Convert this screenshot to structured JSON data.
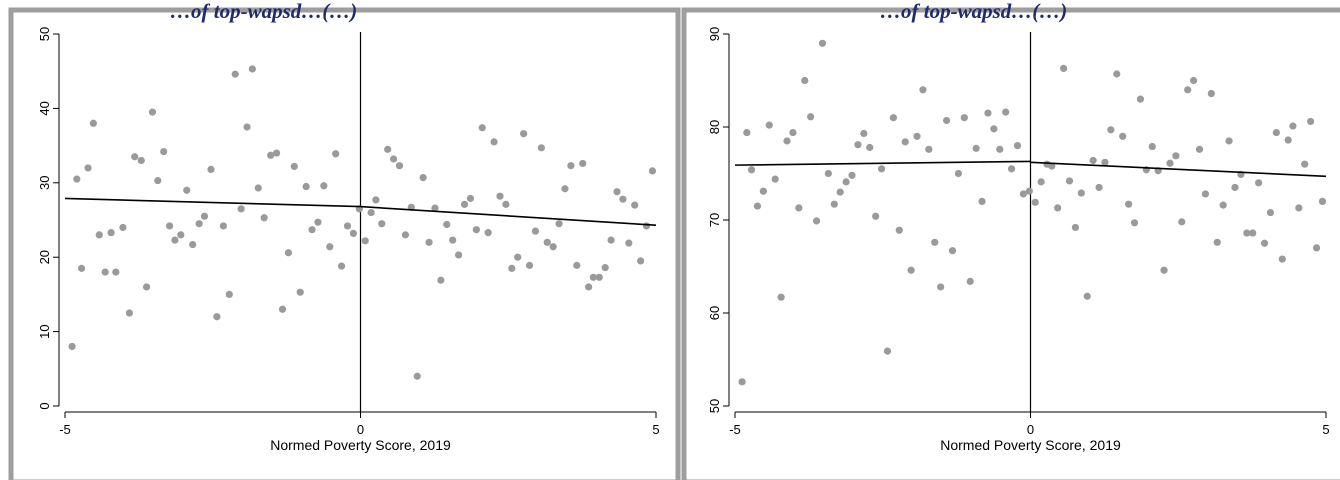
{
  "titles": [
    "…of top-wapsd…(…)",
    "…of top-wapsd…(…)"
  ],
  "chart_data": [
    {
      "type": "scatter",
      "xlabel": "Normed Poverty Score, 2019",
      "ylabel": "",
      "xlim": [
        -5,
        5
      ],
      "ylim": [
        0,
        50
      ],
      "xticks": [
        "-5",
        "0",
        "5"
      ],
      "yticks": [
        "0",
        "10",
        "20",
        "30",
        "40",
        "50"
      ],
      "cutoff": 0,
      "points": [
        [
          -4.88,
          8
        ],
        [
          -4.8,
          30.5
        ],
        [
          -4.72,
          18.5
        ],
        [
          -4.61,
          32
        ],
        [
          -4.52,
          38
        ],
        [
          -4.42,
          23
        ],
        [
          -4.32,
          18
        ],
        [
          -4.22,
          23.3
        ],
        [
          -4.14,
          18
        ],
        [
          -4.02,
          24
        ],
        [
          -3.91,
          12.5
        ],
        [
          -3.82,
          33.5
        ],
        [
          -3.71,
          33
        ],
        [
          -3.62,
          16
        ],
        [
          -3.52,
          39.5
        ],
        [
          -3.43,
          30.3
        ],
        [
          -3.33,
          34.2
        ],
        [
          -3.23,
          24.2
        ],
        [
          -3.14,
          22.3
        ],
        [
          -3.04,
          23
        ],
        [
          -2.94,
          29
        ],
        [
          -2.84,
          21.7
        ],
        [
          -2.73,
          24.5
        ],
        [
          -2.64,
          25.5
        ],
        [
          -2.53,
          31.8
        ],
        [
          -2.43,
          12
        ],
        [
          -2.32,
          24.2
        ],
        [
          -2.22,
          15
        ],
        [
          -2.12,
          44.6
        ],
        [
          -2.02,
          26.5
        ],
        [
          -1.92,
          37.5
        ],
        [
          -1.83,
          45.3
        ],
        [
          -1.73,
          29.3
        ],
        [
          -1.63,
          25.3
        ],
        [
          -1.52,
          33.7
        ],
        [
          -1.42,
          34
        ],
        [
          -1.32,
          13
        ],
        [
          -1.22,
          20.6
        ],
        [
          -1.12,
          32.2
        ],
        [
          -1.02,
          15.3
        ],
        [
          -0.92,
          29.5
        ],
        [
          -0.82,
          23.7
        ],
        [
          -0.72,
          24.7
        ],
        [
          -0.62,
          29.6
        ],
        [
          -0.52,
          21.4
        ],
        [
          -0.42,
          33.9
        ],
        [
          -0.32,
          18.8
        ],
        [
          -0.22,
          24.2
        ],
        [
          -0.12,
          23.2
        ],
        [
          -0.02,
          26.5
        ],
        [
          0.08,
          22.2
        ],
        [
          0.18,
          26
        ],
        [
          0.26,
          27.7
        ],
        [
          0.36,
          24.5
        ],
        [
          0.46,
          34.5
        ],
        [
          0.56,
          33.2
        ],
        [
          0.66,
          32.3
        ],
        [
          0.76,
          23
        ],
        [
          0.86,
          26.7
        ],
        [
          0.96,
          4
        ],
        [
          1.06,
          30.7
        ],
        [
          1.16,
          22
        ],
        [
          1.26,
          26.6
        ],
        [
          1.36,
          16.9
        ],
        [
          1.46,
          24.4
        ],
        [
          1.56,
          22.3
        ],
        [
          1.66,
          20.3
        ],
        [
          1.76,
          27.1
        ],
        [
          1.86,
          27.9
        ],
        [
          1.96,
          23.7
        ],
        [
          2.06,
          37.4
        ],
        [
          2.16,
          23.3
        ],
        [
          2.26,
          35.5
        ],
        [
          2.36,
          28.2
        ],
        [
          2.46,
          27.1
        ],
        [
          2.56,
          18.5
        ],
        [
          2.66,
          20
        ],
        [
          2.76,
          36.6
        ],
        [
          2.86,
          18.9
        ],
        [
          2.96,
          23.5
        ],
        [
          3.06,
          34.7
        ],
        [
          3.16,
          22
        ],
        [
          3.26,
          21.4
        ],
        [
          3.36,
          24.5
        ],
        [
          3.46,
          29.2
        ],
        [
          3.56,
          32.3
        ],
        [
          3.66,
          18.9
        ],
        [
          3.76,
          32.6
        ],
        [
          3.86,
          16
        ],
        [
          3.94,
          17.3
        ],
        [
          4.04,
          17.3
        ],
        [
          4.14,
          18.6
        ],
        [
          4.24,
          22.3
        ],
        [
          4.34,
          28.8
        ],
        [
          4.44,
          27.8
        ],
        [
          4.54,
          21.9
        ],
        [
          4.64,
          27
        ],
        [
          4.74,
          19.5
        ],
        [
          4.84,
          24.2
        ],
        [
          4.94,
          31.6
        ]
      ],
      "fit_left": {
        "x": [
          -5,
          0
        ],
        "y": [
          27.9,
          26.8
        ]
      },
      "fit_right": {
        "x": [
          0,
          5
        ],
        "y": [
          26.8,
          24.3
        ]
      }
    },
    {
      "type": "scatter",
      "xlabel": "Normed Poverty Score, 2019",
      "ylabel": "",
      "xlim": [
        -5,
        5
      ],
      "ylim": [
        50,
        90
      ],
      "xticks": [
        "-5",
        "0",
        "5"
      ],
      "yticks": [
        "50",
        "60",
        "70",
        "80",
        "90"
      ],
      "cutoff": 0,
      "points": [
        [
          -4.88,
          52.6
        ],
        [
          -4.8,
          79.4
        ],
        [
          -4.72,
          75.4
        ],
        [
          -4.62,
          71.5
        ],
        [
          -4.52,
          73.1
        ],
        [
          -4.42,
          80.2
        ],
        [
          -4.32,
          74.4
        ],
        [
          -4.22,
          61.7
        ],
        [
          -4.12,
          78.5
        ],
        [
          -4.02,
          79.4
        ],
        [
          -3.92,
          71.3
        ],
        [
          -3.82,
          85
        ],
        [
          -3.72,
          81.1
        ],
        [
          -3.62,
          69.9
        ],
        [
          -3.52,
          89
        ],
        [
          -3.42,
          75
        ],
        [
          -3.32,
          71.7
        ],
        [
          -3.22,
          73
        ],
        [
          -3.12,
          74.1
        ],
        [
          -3.02,
          74.8
        ],
        [
          -2.92,
          78.1
        ],
        [
          -2.82,
          79.3
        ],
        [
          -2.72,
          77.8
        ],
        [
          -2.62,
          70.4
        ],
        [
          -2.52,
          75.5
        ],
        [
          -2.42,
          55.9
        ],
        [
          -2.32,
          81
        ],
        [
          -2.22,
          68.9
        ],
        [
          -2.12,
          78.4
        ],
        [
          -2.02,
          64.6
        ],
        [
          -1.92,
          79
        ],
        [
          -1.82,
          84
        ],
        [
          -1.72,
          77.6
        ],
        [
          -1.62,
          67.6
        ],
        [
          -1.52,
          62.8
        ],
        [
          -1.42,
          80.7
        ],
        [
          -1.32,
          66.7
        ],
        [
          -1.22,
          75
        ],
        [
          -1.12,
          81
        ],
        [
          -1.02,
          63.4
        ],
        [
          -0.92,
          77.7
        ],
        [
          -0.82,
          72
        ],
        [
          -0.72,
          81.5
        ],
        [
          -0.62,
          79.8
        ],
        [
          -0.52,
          77.6
        ],
        [
          -0.42,
          81.6
        ],
        [
          -0.32,
          75.5
        ],
        [
          -0.22,
          78
        ],
        [
          -0.12,
          72.8
        ],
        [
          -0.02,
          73.1
        ],
        [
          0.08,
          71.9
        ],
        [
          0.18,
          74.1
        ],
        [
          0.28,
          76
        ],
        [
          0.36,
          75.8
        ],
        [
          0.46,
          71.3
        ],
        [
          0.56,
          86.3
        ],
        [
          0.66,
          74.2
        ],
        [
          0.76,
          69.2
        ],
        [
          0.86,
          72.9
        ],
        [
          0.96,
          61.8
        ],
        [
          1.06,
          76.4
        ],
        [
          1.16,
          73.5
        ],
        [
          1.26,
          76.2
        ],
        [
          1.36,
          79.7
        ],
        [
          1.46,
          85.7
        ],
        [
          1.56,
          79
        ],
        [
          1.66,
          71.7
        ],
        [
          1.76,
          69.7
        ],
        [
          1.86,
          83
        ],
        [
          1.96,
          75.4
        ],
        [
          2.06,
          77.9
        ],
        [
          2.16,
          75.3
        ],
        [
          2.26,
          64.6
        ],
        [
          2.36,
          76.1
        ],
        [
          2.46,
          76.9
        ],
        [
          2.56,
          69.8
        ],
        [
          2.66,
          84
        ],
        [
          2.76,
          85
        ],
        [
          2.86,
          77.6
        ],
        [
          2.96,
          72.8
        ],
        [
          3.06,
          83.6
        ],
        [
          3.16,
          67.6
        ],
        [
          3.26,
          71.6
        ],
        [
          3.36,
          78.5
        ],
        [
          3.46,
          73.5
        ],
        [
          3.56,
          74.9
        ],
        [
          3.66,
          68.6
        ],
        [
          3.76,
          68.6
        ],
        [
          3.86,
          74
        ],
        [
          3.96,
          67.5
        ],
        [
          4.06,
          70.8
        ],
        [
          4.16,
          79.4
        ],
        [
          4.26,
          65.8
        ],
        [
          4.36,
          78.6
        ],
        [
          4.44,
          80.1
        ],
        [
          4.54,
          71.3
        ],
        [
          4.64,
          76
        ],
        [
          4.74,
          80.6
        ],
        [
          4.84,
          67
        ],
        [
          4.94,
          72
        ]
      ],
      "fit_left": {
        "x": [
          -5,
          0
        ],
        "y": [
          75.9,
          76.3
        ]
      },
      "fit_right": {
        "x": [
          0,
          5
        ],
        "y": [
          76.2,
          74.7
        ]
      }
    }
  ],
  "colors": {
    "frame": "#9e9e9e",
    "points": "#9a9a9a",
    "lines": "#000000",
    "title": "#1f2a6e"
  }
}
